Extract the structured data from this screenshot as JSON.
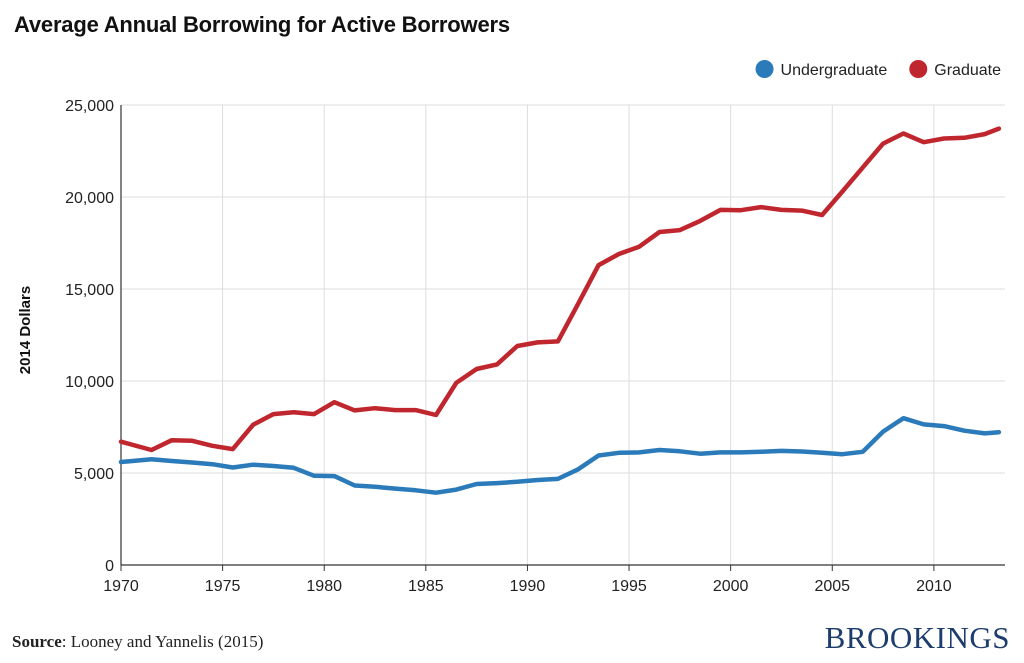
{
  "title": "Average Annual Borrowing for Active Borrowers",
  "footer": {
    "source_label": "Source",
    "source_text": ": Looney and Yannelis (2015)",
    "brand": "BROOKINGS"
  },
  "colors": {
    "undergraduate": "#2b7bba",
    "graduate": "#c0262d",
    "grid": "#dddddd",
    "axis": "#333333"
  },
  "chart_data": {
    "type": "line",
    "title": "Average Annual Borrowing for Active Borrowers",
    "xlabel": "",
    "ylabel": "2014 Dollars",
    "xlim": [
      1970,
      2013.5
    ],
    "ylim": [
      0,
      25000
    ],
    "x_ticks": [
      1970,
      1975,
      1980,
      1985,
      1990,
      1995,
      2000,
      2005,
      2010
    ],
    "y_ticks": [
      0,
      5000,
      10000,
      15000,
      20000,
      25000
    ],
    "y_tick_labels": [
      "0",
      "5,000",
      "10,000",
      "15,000",
      "20,000",
      "25,000"
    ],
    "grid": true,
    "legend_position": "top-right",
    "x": [
      1970,
      1971.5,
      1972.5,
      1973.5,
      1974.5,
      1975.5,
      1976.5,
      1977.5,
      1978.5,
      1979.5,
      1980.5,
      1981.5,
      1982.5,
      1983.5,
      1984.5,
      1985.5,
      1986.5,
      1987.5,
      1988.5,
      1989.5,
      1990.5,
      1991.5,
      1992.5,
      1993.5,
      1994.5,
      1995.5,
      1996.5,
      1997.5,
      1998.5,
      1999.5,
      2000.5,
      2001.5,
      2002.5,
      2003.5,
      2004.5,
      2005.5,
      2006.5,
      2007.5,
      2008.5,
      2009.5,
      2010.5,
      2011.5,
      2012.5,
      2013.2
    ],
    "series": [
      {
        "name": "Undergraduate",
        "color": "#2b7bba",
        "values": [
          5600,
          5750,
          5650,
          5570,
          5480,
          5300,
          5450,
          5380,
          5280,
          4850,
          4830,
          4320,
          4250,
          4150,
          4060,
          3930,
          4100,
          4400,
          4450,
          4520,
          4620,
          4680,
          5200,
          5950,
          6100,
          6120,
          6250,
          6180,
          6050,
          6120,
          6120,
          6150,
          6200,
          6170,
          6100,
          6020,
          6150,
          7250,
          7980,
          7640,
          7550,
          7300,
          7150,
          7220
        ]
      },
      {
        "name": "Graduate",
        "color": "#c0262d",
        "values": [
          6700,
          6250,
          6780,
          6750,
          6480,
          6300,
          7620,
          8200,
          8300,
          8200,
          8850,
          8400,
          8520,
          8420,
          8420,
          8150,
          9900,
          10650,
          10900,
          11900,
          12100,
          12150,
          14200,
          16300,
          16900,
          17300,
          18100,
          18200,
          18700,
          19300,
          19280,
          19450,
          19300,
          19260,
          19020,
          20300,
          21600,
          22900,
          23450,
          22980,
          23180,
          23220,
          23420,
          23720
        ]
      }
    ]
  }
}
